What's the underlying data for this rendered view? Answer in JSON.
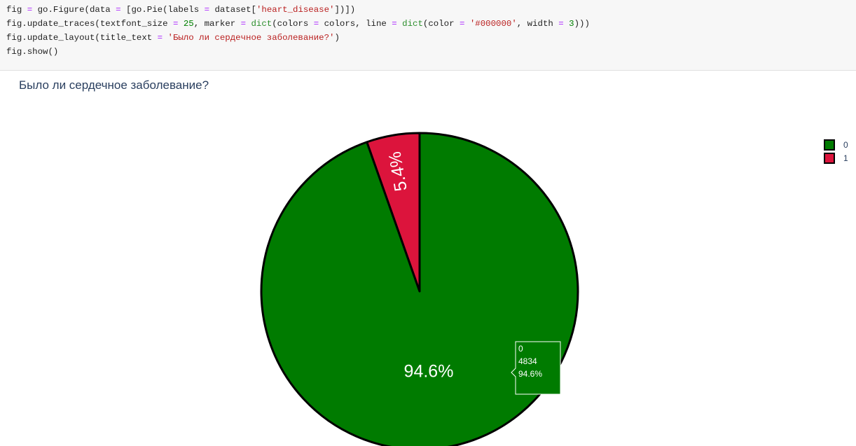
{
  "code": {
    "lines": [
      [
        [
          "fig ",
          ""
        ],
        [
          "=",
          "op"
        ],
        [
          " go.Figure(data ",
          ""
        ],
        [
          "=",
          "op"
        ],
        [
          " [go.Pie(labels ",
          ""
        ],
        [
          "=",
          "op"
        ],
        [
          " dataset[",
          ""
        ],
        [
          "'heart_disease'",
          "str"
        ],
        [
          "])])",
          ""
        ]
      ],
      [
        [
          "fig.update_traces(textfont_size ",
          ""
        ],
        [
          "=",
          "op"
        ],
        [
          " ",
          ""
        ],
        [
          "25",
          "num"
        ],
        [
          ", marker ",
          ""
        ],
        [
          "=",
          "op"
        ],
        [
          " ",
          ""
        ],
        [
          "dict",
          "fn"
        ],
        [
          "(colors ",
          ""
        ],
        [
          "=",
          "op"
        ],
        [
          " colors, line ",
          ""
        ],
        [
          "=",
          "op"
        ],
        [
          " ",
          ""
        ],
        [
          "dict",
          "fn"
        ],
        [
          "(color ",
          ""
        ],
        [
          "=",
          "op"
        ],
        [
          " ",
          ""
        ],
        [
          "'#000000'",
          "str"
        ],
        [
          ", width ",
          ""
        ],
        [
          "=",
          "op"
        ],
        [
          " ",
          ""
        ],
        [
          "3",
          "num"
        ],
        [
          ")))",
          ""
        ]
      ],
      [
        [
          "fig.update_layout(title_text ",
          ""
        ],
        [
          "=",
          "op"
        ],
        [
          " ",
          ""
        ],
        [
          "'Было ли сердечное заболевание?'",
          "str"
        ],
        [
          ")",
          ""
        ]
      ],
      [
        [
          "fig.show()",
          ""
        ]
      ]
    ]
  },
  "chart_data": {
    "type": "pie",
    "title": "Было ли сердечное заболевание?",
    "labels": [
      "0",
      "1"
    ],
    "values": [
      4834,
      276
    ],
    "percent_labels": [
      "94.6%",
      "5.4%"
    ],
    "colors": [
      "#007b00",
      "#dc143c"
    ],
    "line_color": "#000000",
    "legend_placement": "top-right",
    "hover": {
      "label": "0",
      "value": "4834",
      "percent": "94.6%"
    }
  }
}
